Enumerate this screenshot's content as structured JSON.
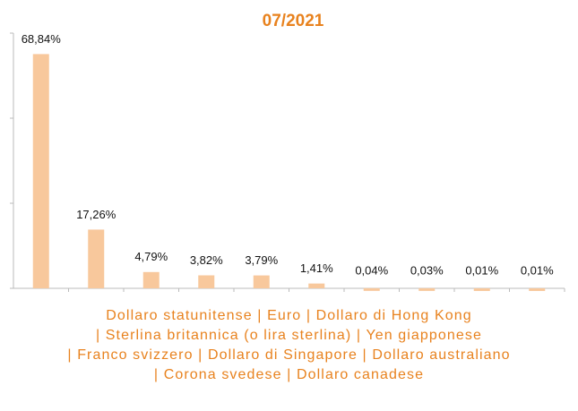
{
  "chart_data": {
    "type": "bar",
    "title": "07/2021",
    "categories": [
      "Dollaro statunitense",
      "Euro",
      "Dollaro di Hong Kong",
      "Sterlina britannica (o lira sterlina)",
      "Yen giapponese",
      "Franco svizzero",
      "Dollaro di Singapore",
      "Dollaro australiano",
      "Corona svedese",
      "Dollaro canadese"
    ],
    "separator": "|",
    "values": [
      68.84,
      17.26,
      4.79,
      3.82,
      3.79,
      1.41,
      0.04,
      0.03,
      0.01,
      0.01
    ],
    "value_labels": [
      "68,84%",
      "17,26%",
      "4,79%",
      "3,82%",
      "3,79%",
      "1,41%",
      "0,04%",
      "0,03%",
      "0,01%",
      "0,01%"
    ],
    "color": "#f8c89c",
    "ylim": [
      0,
      75
    ],
    "yticks": [
      0,
      25,
      50,
      75
    ],
    "grid": false
  }
}
